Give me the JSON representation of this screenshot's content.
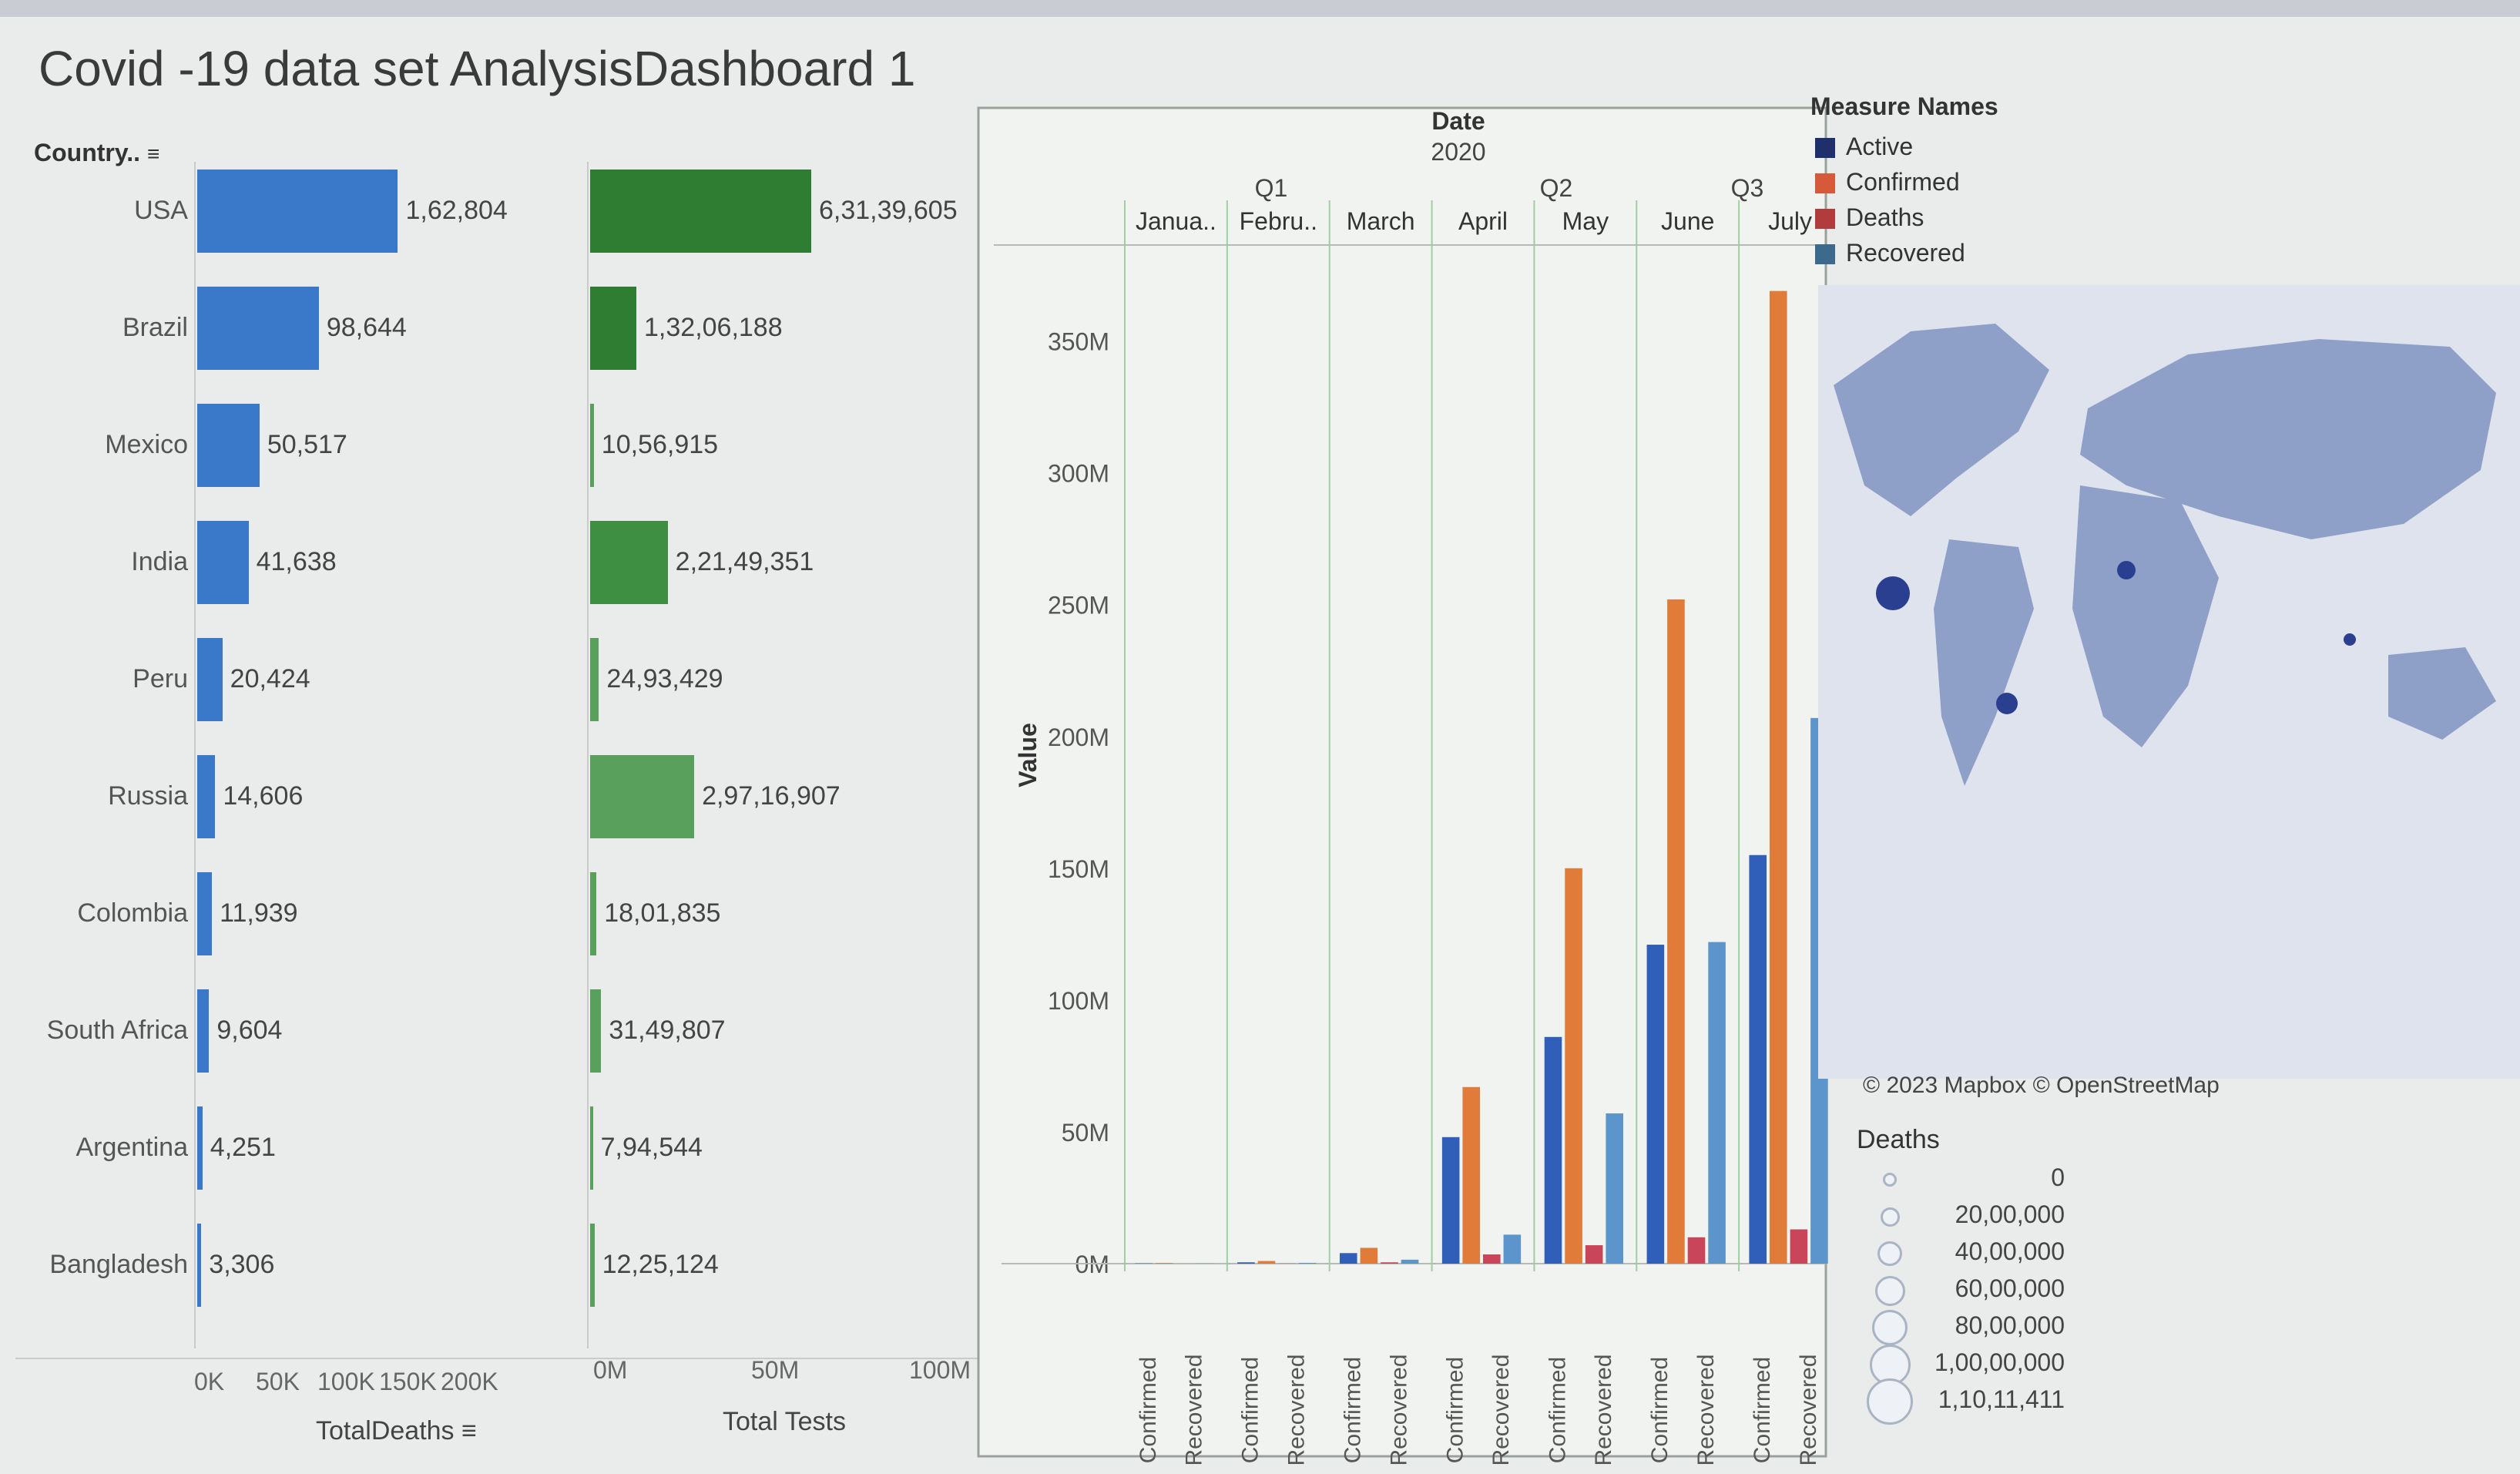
{
  "dashboard": {
    "title": "Covid -19 data set AnalysisDashboard 1",
    "country_header": "Country..",
    "legend_title": "Measure Names",
    "map_credit": "© 2023 Mapbox © OpenStreetMap",
    "deaths_legend_title": "Deaths",
    "deaths_legend": [
      "0",
      "20,00,000",
      "40,00,000",
      "60,00,000",
      "80,00,000",
      "1,00,00,000",
      "1,10,11,411"
    ]
  },
  "chart_data": [
    {
      "type": "bar",
      "orientation": "horizontal",
      "categories": [
        "USA",
        "Brazil",
        "Mexico",
        "India",
        "Peru",
        "Russia",
        "Colombia",
        "South Africa",
        "Argentina",
        "Bangladesh"
      ],
      "values": [
        162804,
        98644,
        50517,
        41638,
        20424,
        14606,
        11939,
        9604,
        4251,
        3306
      ],
      "labels": [
        "1,62,804",
        "98,644",
        "50,517",
        "41,638",
        "20,424",
        "14,606",
        "11,939",
        "9,604",
        "4,251",
        "3,306"
      ],
      "xlabel": "TotalDeaths",
      "xticks": [
        "0K",
        "50K",
        "100K",
        "150K",
        "200K"
      ],
      "xlim": [
        0,
        250000
      ],
      "color": "#3a78c9"
    },
    {
      "type": "bar",
      "orientation": "horizontal",
      "categories": [
        "USA",
        "Brazil",
        "Mexico",
        "India",
        "Peru",
        "Russia",
        "Colombia",
        "South Africa",
        "Argentina",
        "Bangladesh"
      ],
      "values": [
        63139605,
        13206188,
        1056915,
        22149351,
        2493429,
        29716907,
        1801835,
        3149807,
        794544,
        1225124
      ],
      "labels": [
        "6,31,39,605",
        "1,32,06,188",
        "10,56,915",
        "2,21,49,351",
        "24,93,429",
        "2,97,16,907",
        "18,01,835",
        "31,49,807",
        "7,94,544",
        "12,25,124"
      ],
      "xlabel": "Total Tests",
      "xticks": [
        "0M",
        "50M",
        "100M"
      ],
      "xlim": [
        0,
        110000000
      ],
      "colors": [
        "#2f7d32",
        "#2f7d32",
        "#5aa05d",
        "#3f8f42",
        "#5aa05d",
        "#5aa05d",
        "#5aa05d",
        "#5aa05d",
        "#5aa05d",
        "#5aa05d"
      ]
    },
    {
      "type": "bar",
      "orientation": "vertical",
      "header_title": "Date",
      "year": "2020",
      "quarters": [
        "Q1",
        "Q2",
        "Q3"
      ],
      "months": [
        "Janua..",
        "Febru..",
        "March",
        "April",
        "May",
        "June",
        "July"
      ],
      "measures": [
        "Active",
        "Confirmed",
        "Deaths",
        "Recovered"
      ],
      "xlabels": [
        "Confirmed",
        "Recovered"
      ],
      "series": [
        {
          "name": "Active",
          "color": "#2f5fb8",
          "values": [
            0.1,
            0.5,
            4,
            48,
            86,
            121,
            155
          ]
        },
        {
          "name": "Confirmed",
          "color": "#e07b39",
          "values": [
            0.2,
            1,
            6,
            67,
            150,
            252,
            369
          ]
        },
        {
          "name": "Deaths",
          "color": "#c9455a",
          "values": [
            0,
            0.05,
            0.5,
            3.5,
            7,
            10,
            13
          ]
        },
        {
          "name": "Recovered",
          "color": "#5b95cc",
          "values": [
            0.05,
            0.3,
            1.5,
            11,
            57,
            122,
            207
          ]
        }
      ],
      "ylabel": "Value",
      "yticks": [
        "0M",
        "50M",
        "100M",
        "150M",
        "200M",
        "250M",
        "300M",
        "350M"
      ],
      "ylim": [
        0,
        380
      ]
    }
  ],
  "legend": [
    {
      "label": "Active",
      "color": "#1f2f6b"
    },
    {
      "label": "Confirmed",
      "color": "#d65a3a"
    },
    {
      "label": "Deaths",
      "color": "#b23b3b"
    },
    {
      "label": "Recovered",
      "color": "#3c6a8c"
    }
  ]
}
